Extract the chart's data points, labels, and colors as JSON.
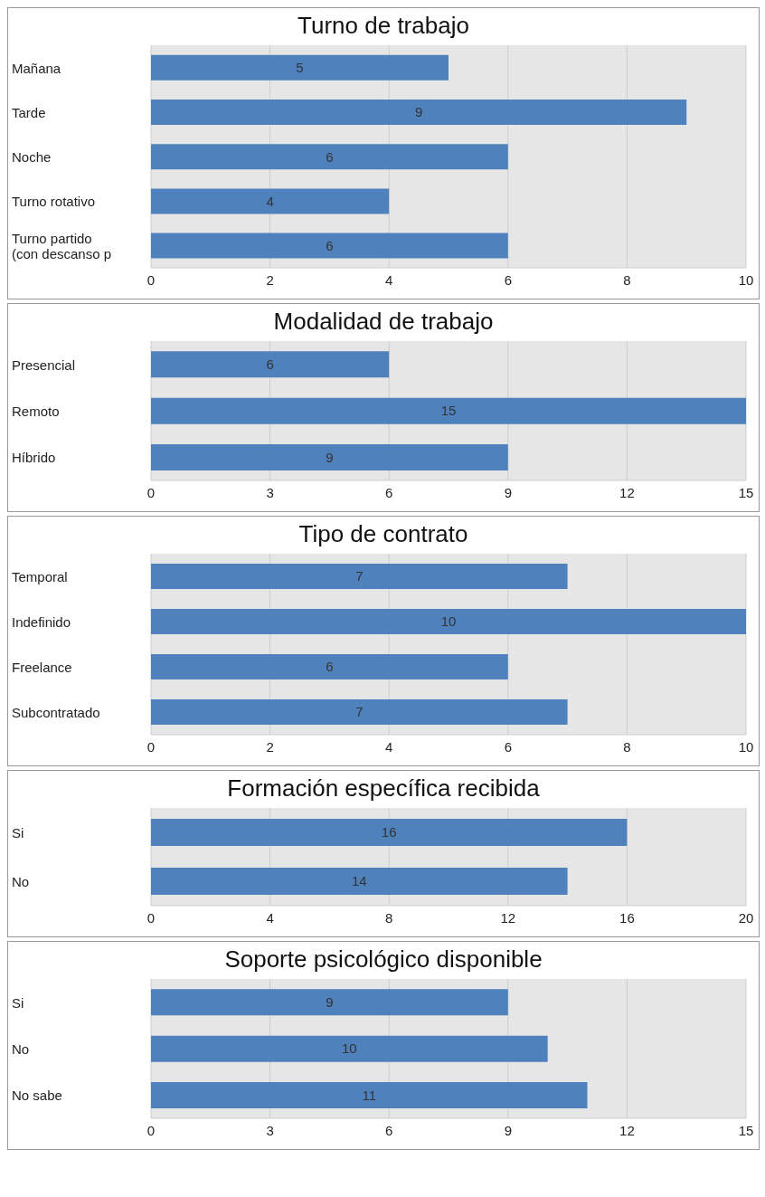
{
  "chart_data": [
    {
      "type": "bar",
      "orientation": "horizontal",
      "title": "Turno de trabajo",
      "categories": [
        "Mañana",
        "Tarde",
        "Noche",
        "Turno rotativo",
        "Turno partido (con descanso p"
      ],
      "values": [
        5,
        9,
        6,
        4,
        6
      ],
      "color": "#4f81bd",
      "xlim": [
        0,
        10
      ],
      "xticks": [
        0,
        2,
        4,
        6,
        8,
        10
      ],
      "grid": "x",
      "data_labels": true
    },
    {
      "type": "bar",
      "orientation": "horizontal",
      "title": "Modalidad de trabajo",
      "categories": [
        "Presencial",
        "Remoto",
        "Híbrido"
      ],
      "values": [
        6,
        15,
        9
      ],
      "color": "#4f81bd",
      "xlim": [
        0,
        15
      ],
      "xticks": [
        0,
        3,
        6,
        9,
        12,
        15
      ],
      "grid": "x",
      "data_labels": true
    },
    {
      "type": "bar",
      "orientation": "horizontal",
      "title": "Tipo de contrato",
      "categories": [
        "Temporal",
        "Indefinido",
        "Freelance",
        "Subcontratado"
      ],
      "values": [
        7,
        10,
        6,
        7
      ],
      "color": "#4f81bd",
      "xlim": [
        0,
        10
      ],
      "xticks": [
        0,
        2,
        4,
        6,
        8,
        10
      ],
      "grid": "x",
      "data_labels": true
    },
    {
      "type": "bar",
      "orientation": "horizontal",
      "title": "Formación específica recibida",
      "categories": [
        "Si",
        "No"
      ],
      "values": [
        16,
        14
      ],
      "color": "#4f81bd",
      "xlim": [
        0,
        20
      ],
      "xticks": [
        0,
        4,
        8,
        12,
        16,
        20
      ],
      "grid": "x",
      "data_labels": true
    },
    {
      "type": "bar",
      "orientation": "horizontal",
      "title": "Soporte psicológico disponible",
      "categories": [
        "Si",
        "No",
        "No sabe"
      ],
      "values": [
        9,
        10,
        11
      ],
      "color": "#4f81bd",
      "xlim": [
        0,
        15
      ],
      "xticks": [
        0,
        3,
        6,
        9,
        12,
        15
      ],
      "grid": "x",
      "data_labels": true
    }
  ]
}
